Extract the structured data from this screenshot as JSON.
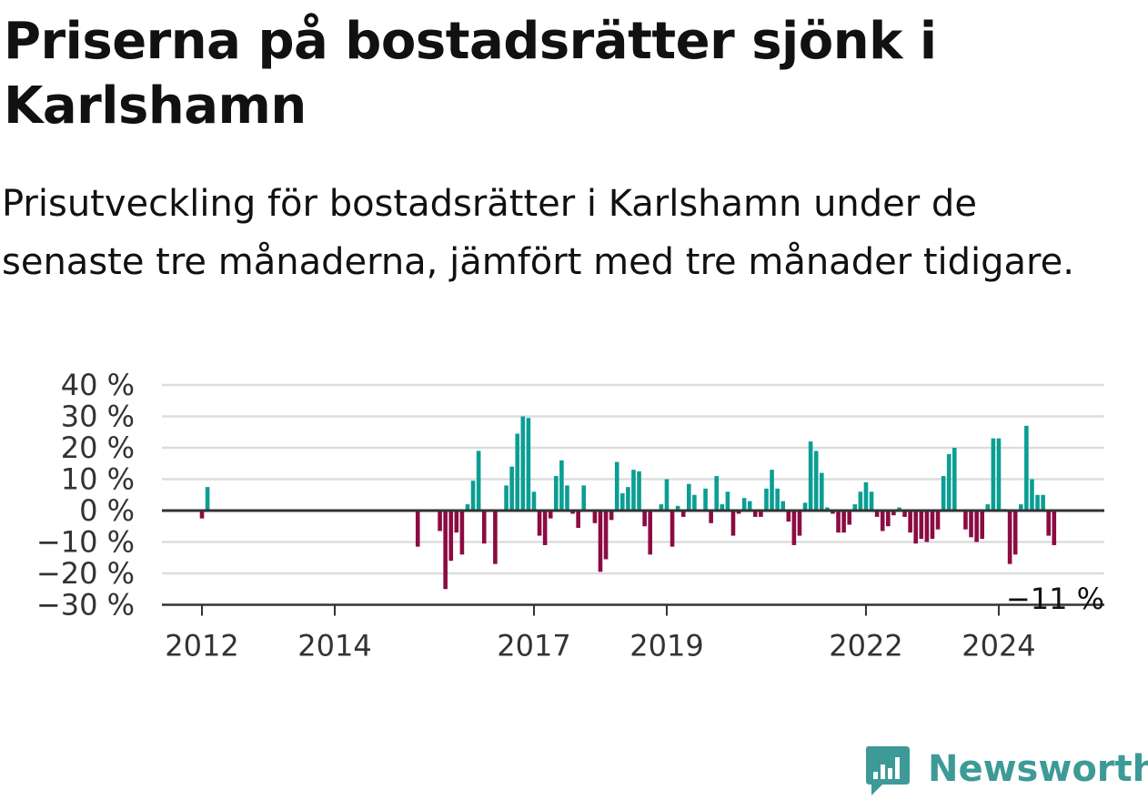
{
  "title": "Priserna på bostadsrätter sjönk i Karlshamn",
  "subtitle": "Prisutveckling för bostadsrätter i Karlshamn under de senaste tre månaderna, jämfört med tre månader tidigare.",
  "brand": {
    "name": "Newsworthy",
    "color": "#3d9a97",
    "icon": "newsworthy-logo-icon"
  },
  "colors": {
    "positive": "#0a9e94",
    "negative": "#8c0b42",
    "grid": "#dddddd",
    "axis": "#333333"
  },
  "chart_data": {
    "type": "bar",
    "title": "Priserna på bostadsrätter sjönk i Karlshamn",
    "subtitle": "Prisutveckling för bostadsrätter i Karlshamn under de senaste tre månaderna, jämfört med tre månader tidigare.",
    "xlabel": "",
    "ylabel": "",
    "unit": "%",
    "ylim": [
      -30,
      40
    ],
    "yticks": [
      40,
      30,
      20,
      10,
      0,
      -10,
      -20,
      -30
    ],
    "ytick_labels": [
      "40 %",
      "30 %",
      "20 %",
      "10 %",
      "0 %",
      "−10 %",
      "−20 %",
      "−30 %"
    ],
    "xticks": [
      "2012",
      "2014",
      "2017",
      "2019",
      "2022",
      "2024"
    ],
    "grid": true,
    "legend": "none",
    "last_value_label": "−11 %",
    "series": [
      {
        "values": [
          {
            "date": "2012-01",
            "value": -2.5
          },
          {
            "date": "2012-02",
            "value": 7.5
          },
          {
            "date": "2015-04",
            "value": -11.5
          },
          {
            "date": "2015-08",
            "value": -6.5
          },
          {
            "date": "2015-09",
            "value": -25
          },
          {
            "date": "2015-10",
            "value": -16
          },
          {
            "date": "2015-11",
            "value": -7
          },
          {
            "date": "2015-12",
            "value": -14
          },
          {
            "date": "2016-01",
            "value": 2
          },
          {
            "date": "2016-02",
            "value": 9.5
          },
          {
            "date": "2016-03",
            "value": 19
          },
          {
            "date": "2016-04",
            "value": -10.5
          },
          {
            "date": "2016-06",
            "value": -17
          },
          {
            "date": "2016-08",
            "value": 8
          },
          {
            "date": "2016-09",
            "value": 14
          },
          {
            "date": "2016-10",
            "value": 24.5
          },
          {
            "date": "2016-11",
            "value": 30
          },
          {
            "date": "2016-12",
            "value": 29.5
          },
          {
            "date": "2017-01",
            "value": 6
          },
          {
            "date": "2017-02",
            "value": -8
          },
          {
            "date": "2017-03",
            "value": -11
          },
          {
            "date": "2017-04",
            "value": -2.5
          },
          {
            "date": "2017-05",
            "value": 11
          },
          {
            "date": "2017-06",
            "value": 16
          },
          {
            "date": "2017-07",
            "value": 8
          },
          {
            "date": "2017-08",
            "value": -1
          },
          {
            "date": "2017-09",
            "value": -5.5
          },
          {
            "date": "2017-10",
            "value": 8
          },
          {
            "date": "2017-12",
            "value": -4
          },
          {
            "date": "2018-01",
            "value": -19.5
          },
          {
            "date": "2018-02",
            "value": -15.5
          },
          {
            "date": "2018-03",
            "value": -3
          },
          {
            "date": "2018-04",
            "value": 15.5
          },
          {
            "date": "2018-05",
            "value": 5.5
          },
          {
            "date": "2018-06",
            "value": 7.5
          },
          {
            "date": "2018-07",
            "value": 13
          },
          {
            "date": "2018-08",
            "value": 12.5
          },
          {
            "date": "2018-09",
            "value": -5
          },
          {
            "date": "2018-10",
            "value": -14
          },
          {
            "date": "2018-12",
            "value": 2
          },
          {
            "date": "2019-01",
            "value": 10
          },
          {
            "date": "2019-02",
            "value": -11.5
          },
          {
            "date": "2019-03",
            "value": 1.5
          },
          {
            "date": "2019-04",
            "value": -2
          },
          {
            "date": "2019-05",
            "value": 8.5
          },
          {
            "date": "2019-06",
            "value": 5
          },
          {
            "date": "2019-08",
            "value": 7
          },
          {
            "date": "2019-09",
            "value": -4
          },
          {
            "date": "2019-10",
            "value": 11
          },
          {
            "date": "2019-11",
            "value": 2
          },
          {
            "date": "2019-12",
            "value": 6
          },
          {
            "date": "2020-01",
            "value": -8
          },
          {
            "date": "2020-02",
            "value": -1
          },
          {
            "date": "2020-03",
            "value": 4
          },
          {
            "date": "2020-04",
            "value": 3
          },
          {
            "date": "2020-05",
            "value": -2
          },
          {
            "date": "2020-06",
            "value": -2
          },
          {
            "date": "2020-07",
            "value": 7
          },
          {
            "date": "2020-08",
            "value": 13
          },
          {
            "date": "2020-09",
            "value": 7
          },
          {
            "date": "2020-10",
            "value": 3
          },
          {
            "date": "2020-11",
            "value": -3.5
          },
          {
            "date": "2020-12",
            "value": -11
          },
          {
            "date": "2021-01",
            "value": -8
          },
          {
            "date": "2021-02",
            "value": 2.5
          },
          {
            "date": "2021-03",
            "value": 22
          },
          {
            "date": "2021-04",
            "value": 19
          },
          {
            "date": "2021-05",
            "value": 12
          },
          {
            "date": "2021-06",
            "value": 1
          },
          {
            "date": "2021-07",
            "value": -1
          },
          {
            "date": "2021-08",
            "value": -7
          },
          {
            "date": "2021-09",
            "value": -7
          },
          {
            "date": "2021-10",
            "value": -4.5
          },
          {
            "date": "2021-11",
            "value": 2
          },
          {
            "date": "2021-12",
            "value": 6
          },
          {
            "date": "2022-01",
            "value": 9
          },
          {
            "date": "2022-02",
            "value": 6
          },
          {
            "date": "2022-03",
            "value": -2
          },
          {
            "date": "2022-04",
            "value": -6.5
          },
          {
            "date": "2022-05",
            "value": -5
          },
          {
            "date": "2022-06",
            "value": -1.5
          },
          {
            "date": "2022-07",
            "value": 1
          },
          {
            "date": "2022-08",
            "value": -2
          },
          {
            "date": "2022-09",
            "value": -7
          },
          {
            "date": "2022-10",
            "value": -10.5
          },
          {
            "date": "2022-11",
            "value": -9
          },
          {
            "date": "2022-12",
            "value": -10
          },
          {
            "date": "2023-01",
            "value": -9
          },
          {
            "date": "2023-02",
            "value": -6
          },
          {
            "date": "2023-03",
            "value": 11
          },
          {
            "date": "2023-04",
            "value": 18
          },
          {
            "date": "2023-05",
            "value": 20
          },
          {
            "date": "2023-07",
            "value": -6
          },
          {
            "date": "2023-08",
            "value": -8.5
          },
          {
            "date": "2023-09",
            "value": -10
          },
          {
            "date": "2023-10",
            "value": -9
          },
          {
            "date": "2023-11",
            "value": 2
          },
          {
            "date": "2023-12",
            "value": 23
          },
          {
            "date": "2024-01",
            "value": 23
          },
          {
            "date": "2024-02",
            "value": 0.5
          },
          {
            "date": "2024-03",
            "value": -17
          },
          {
            "date": "2024-04",
            "value": -14
          },
          {
            "date": "2024-05",
            "value": 2
          },
          {
            "date": "2024-06",
            "value": 27
          },
          {
            "date": "2024-07",
            "value": 10
          },
          {
            "date": "2024-08",
            "value": 5
          },
          {
            "date": "2024-09",
            "value": 5
          },
          {
            "date": "2024-10",
            "value": -8
          },
          {
            "date": "2024-11",
            "value": -11
          }
        ]
      }
    ]
  }
}
